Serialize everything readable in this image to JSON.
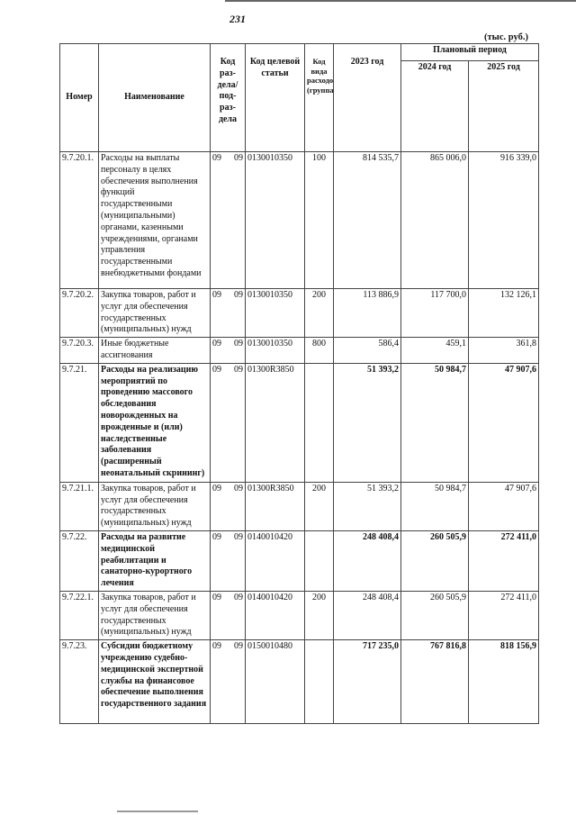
{
  "page_number": "231",
  "units": "(тыс. руб.)",
  "header": {
    "number": "Номер",
    "name": "Наименование",
    "section_code": "Код раз-дела/ под-раз-дела",
    "target_code": "Код целевой статьи",
    "expense_type": "Код вида расходов (группа)",
    "year_2023": "2023 год",
    "planned_period": "Плановый период",
    "year_2024": "2024 год",
    "year_2025": "2025 год"
  },
  "rows": [
    {
      "number": "9.7.20.1.",
      "name": "Расходы на выплаты персоналу в целях обеспечения выполнения функций государственными (муниципальными) органами, казенными учреждениями, органами управления государственными внебюджетными фондами",
      "rz": "09",
      "prz": "09",
      "target": "0130010350",
      "type": "100",
      "y2023": "814 535,7",
      "y2024": "865 006,0",
      "y2025": "916 339,0",
      "bold": false
    },
    {
      "number": "9.7.20.2.",
      "name": "Закупка товаров, работ и услуг для обеспечения государственных (муниципальных) нужд",
      "rz": "09",
      "prz": "09",
      "target": "0130010350",
      "type": "200",
      "y2023": "113 886,9",
      "y2024": "117 700,0",
      "y2025": "132 126,1",
      "bold": false
    },
    {
      "number": "9.7.20.3.",
      "name": "Иные бюджетные ассигнования",
      "rz": "09",
      "prz": "09",
      "target": "0130010350",
      "type": "800",
      "y2023": "586,4",
      "y2024": "459,1",
      "y2025": "361,8",
      "bold": false
    },
    {
      "number": "9.7.21.",
      "name": "Расходы на реализацию мероприятий по проведению массового обследования новорожденных на врожденные и (или) наследственные заболевания (расширенный неонатальный скрининг)",
      "rz": "09",
      "prz": "09",
      "target": "01300R3850",
      "type": "",
      "y2023": "51 393,2",
      "y2024": "50 984,7",
      "y2025": "47 907,6",
      "bold": true
    },
    {
      "number": "9.7.21.1.",
      "name": "Закупка товаров, работ и услуг для обеспечения государственных (муниципальных) нужд",
      "rz": "09",
      "prz": "09",
      "target": "01300R3850",
      "type": "200",
      "y2023": "51 393,2",
      "y2024": "50 984,7",
      "y2025": "47 907,6",
      "bold": false
    },
    {
      "number": "9.7.22.",
      "name": "Расходы на развитие медицинской реабилитации и санаторно-курортного лечения",
      "rz": "09",
      "prz": "09",
      "target": "0140010420",
      "type": "",
      "y2023": "248 408,4",
      "y2024": "260 505,9",
      "y2025": "272 411,0",
      "bold": true
    },
    {
      "number": "9.7.22.1.",
      "name": "Закупка товаров, работ и услуг для обеспечения государственных (муниципальных) нужд",
      "rz": "09",
      "prz": "09",
      "target": "0140010420",
      "type": "200",
      "y2023": "248 408,4",
      "y2024": "260 505,9",
      "y2025": "272 411,0",
      "bold": false
    },
    {
      "number": "9.7.23.",
      "name": "Субсидии бюджетному учреждению судебно-медицинской экспертной службы на финансовое обеспечение выполнения государственного задания",
      "rz": "09",
      "prz": "09",
      "target": "0150010480",
      "type": "",
      "y2023": "717 235,0",
      "y2024": "767 816,8",
      "y2025": "818 156,9",
      "bold": true
    }
  ]
}
